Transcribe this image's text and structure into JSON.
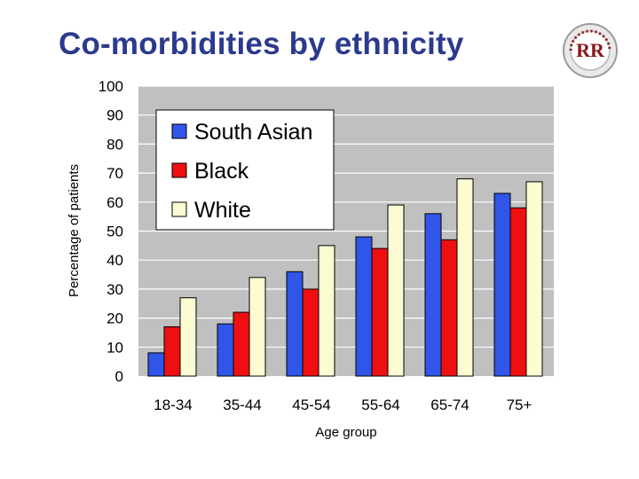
{
  "slide": {
    "title": "Co-morbidities by ethnicity",
    "logo_text": "RR",
    "logo_color": "#8c1616"
  },
  "chart_data": {
    "type": "bar",
    "title": "",
    "xlabel": "Age group",
    "ylabel": "Percentage of patients",
    "ylim": [
      0,
      100
    ],
    "yticks": [
      0,
      10,
      20,
      30,
      40,
      50,
      60,
      70,
      80,
      90,
      100
    ],
    "grid": true,
    "plot_background": "#c0c0c0",
    "legend_position": "top-left",
    "categories": [
      "18-34",
      "35-44",
      "45-54",
      "55-64",
      "65-74",
      "75+"
    ],
    "series": [
      {
        "name": "South Asian",
        "color": "#2f56e8",
        "values": [
          8,
          18,
          36,
          48,
          56,
          63
        ]
      },
      {
        "name": "Black",
        "color": "#ee1010",
        "values": [
          17,
          22,
          30,
          44,
          47,
          58
        ]
      },
      {
        "name": "White",
        "color": "#fdfbd2",
        "values": [
          27,
          34,
          45,
          59,
          68,
          67
        ]
      }
    ]
  }
}
